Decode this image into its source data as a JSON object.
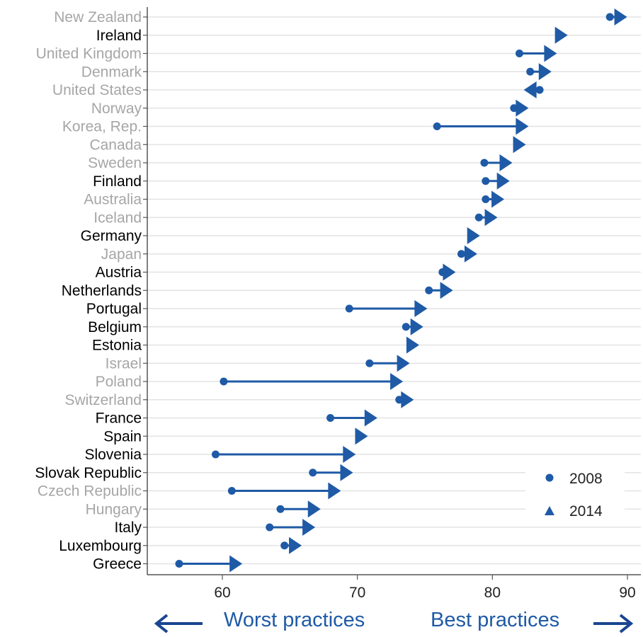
{
  "chart_data": {
    "type": "scatter",
    "title": "",
    "xlabel": "",
    "ylabel": "",
    "xlim": [
      55,
      92
    ],
    "xticks": [
      60,
      70,
      80,
      90
    ],
    "grid": "horizontal",
    "legend_position": "bottom-right",
    "series": [
      {
        "name": "2008",
        "marker": "circle"
      },
      {
        "name": "2014",
        "marker": "triangle"
      }
    ],
    "rows": [
      {
        "country": "New Zealand",
        "v2008": 88.7,
        "v2014": 89.4,
        "highlight": false
      },
      {
        "country": "Ireland",
        "v2008": null,
        "v2014": 85.0,
        "highlight": true
      },
      {
        "country": "United Kingdom",
        "v2008": 82.0,
        "v2014": 84.2,
        "highlight": false
      },
      {
        "country": "Denmark",
        "v2008": 82.8,
        "v2014": 83.8,
        "highlight": false
      },
      {
        "country": "United States",
        "v2008": 83.5,
        "v2014": 82.9,
        "highlight": false
      },
      {
        "country": "Norway",
        "v2008": 81.6,
        "v2014": 82.1,
        "highlight": false
      },
      {
        "country": "Korea, Rep.",
        "v2008": 75.9,
        "v2014": 82.1,
        "highlight": false
      },
      {
        "country": "Canada",
        "v2008": null,
        "v2014": 81.9,
        "highlight": false
      },
      {
        "country": "Sweden",
        "v2008": 79.4,
        "v2014": 80.9,
        "highlight": false
      },
      {
        "country": "Finland",
        "v2008": 79.5,
        "v2014": 80.7,
        "highlight": true
      },
      {
        "country": "Australia",
        "v2008": 79.5,
        "v2014": 80.3,
        "highlight": false
      },
      {
        "country": "Iceland",
        "v2008": 79.0,
        "v2014": 79.8,
        "highlight": false
      },
      {
        "country": "Germany",
        "v2008": null,
        "v2014": 78.5,
        "highlight": true
      },
      {
        "country": "Japan",
        "v2008": 77.7,
        "v2014": 78.3,
        "highlight": false
      },
      {
        "country": "Austria",
        "v2008": 76.3,
        "v2014": 76.7,
        "highlight": true
      },
      {
        "country": "Netherlands",
        "v2008": 75.3,
        "v2014": 76.5,
        "highlight": true
      },
      {
        "country": "Portugal",
        "v2008": 69.4,
        "v2014": 74.6,
        "highlight": true
      },
      {
        "country": "Belgium",
        "v2008": 73.6,
        "v2014": 74.3,
        "highlight": true
      },
      {
        "country": "Estonia",
        "v2008": null,
        "v2014": 74.0,
        "highlight": true
      },
      {
        "country": "Israel",
        "v2008": 70.9,
        "v2014": 73.3,
        "highlight": false
      },
      {
        "country": "Poland",
        "v2008": 60.1,
        "v2014": 72.8,
        "highlight": false
      },
      {
        "country": "Switzerland",
        "v2008": 73.1,
        "v2014": 73.6,
        "highlight": false
      },
      {
        "country": "France",
        "v2008": 68.0,
        "v2014": 70.9,
        "highlight": true
      },
      {
        "country": "Spain",
        "v2008": null,
        "v2014": 70.2,
        "highlight": true
      },
      {
        "country": "Slovenia",
        "v2008": 59.5,
        "v2014": 69.3,
        "highlight": true
      },
      {
        "country": "Slovak Republic",
        "v2008": 66.7,
        "v2014": 69.1,
        "highlight": true
      },
      {
        "country": "Czech Republic",
        "v2008": 60.7,
        "v2014": 68.2,
        "highlight": false
      },
      {
        "country": "Hungary",
        "v2008": 64.3,
        "v2014": 66.7,
        "highlight": false
      },
      {
        "country": "Italy",
        "v2008": 63.5,
        "v2014": 66.3,
        "highlight": true
      },
      {
        "country": "Luxembourg",
        "v2008": 64.6,
        "v2014": 65.3,
        "highlight": true
      },
      {
        "country": "Greece",
        "v2008": 56.8,
        "v2014": 60.9,
        "highlight": true
      }
    ]
  },
  "colors": {
    "series": "#1f5aa6",
    "label_dark": "#000000",
    "label_muted": "#a6a6a6",
    "grid": "#e3e3e3",
    "axis": "#555555"
  },
  "footer": {
    "left_label": "Worst practices",
    "right_label": "Best practices",
    "left_icon": "arrow-left-icon",
    "right_icon": "arrow-right-icon"
  }
}
